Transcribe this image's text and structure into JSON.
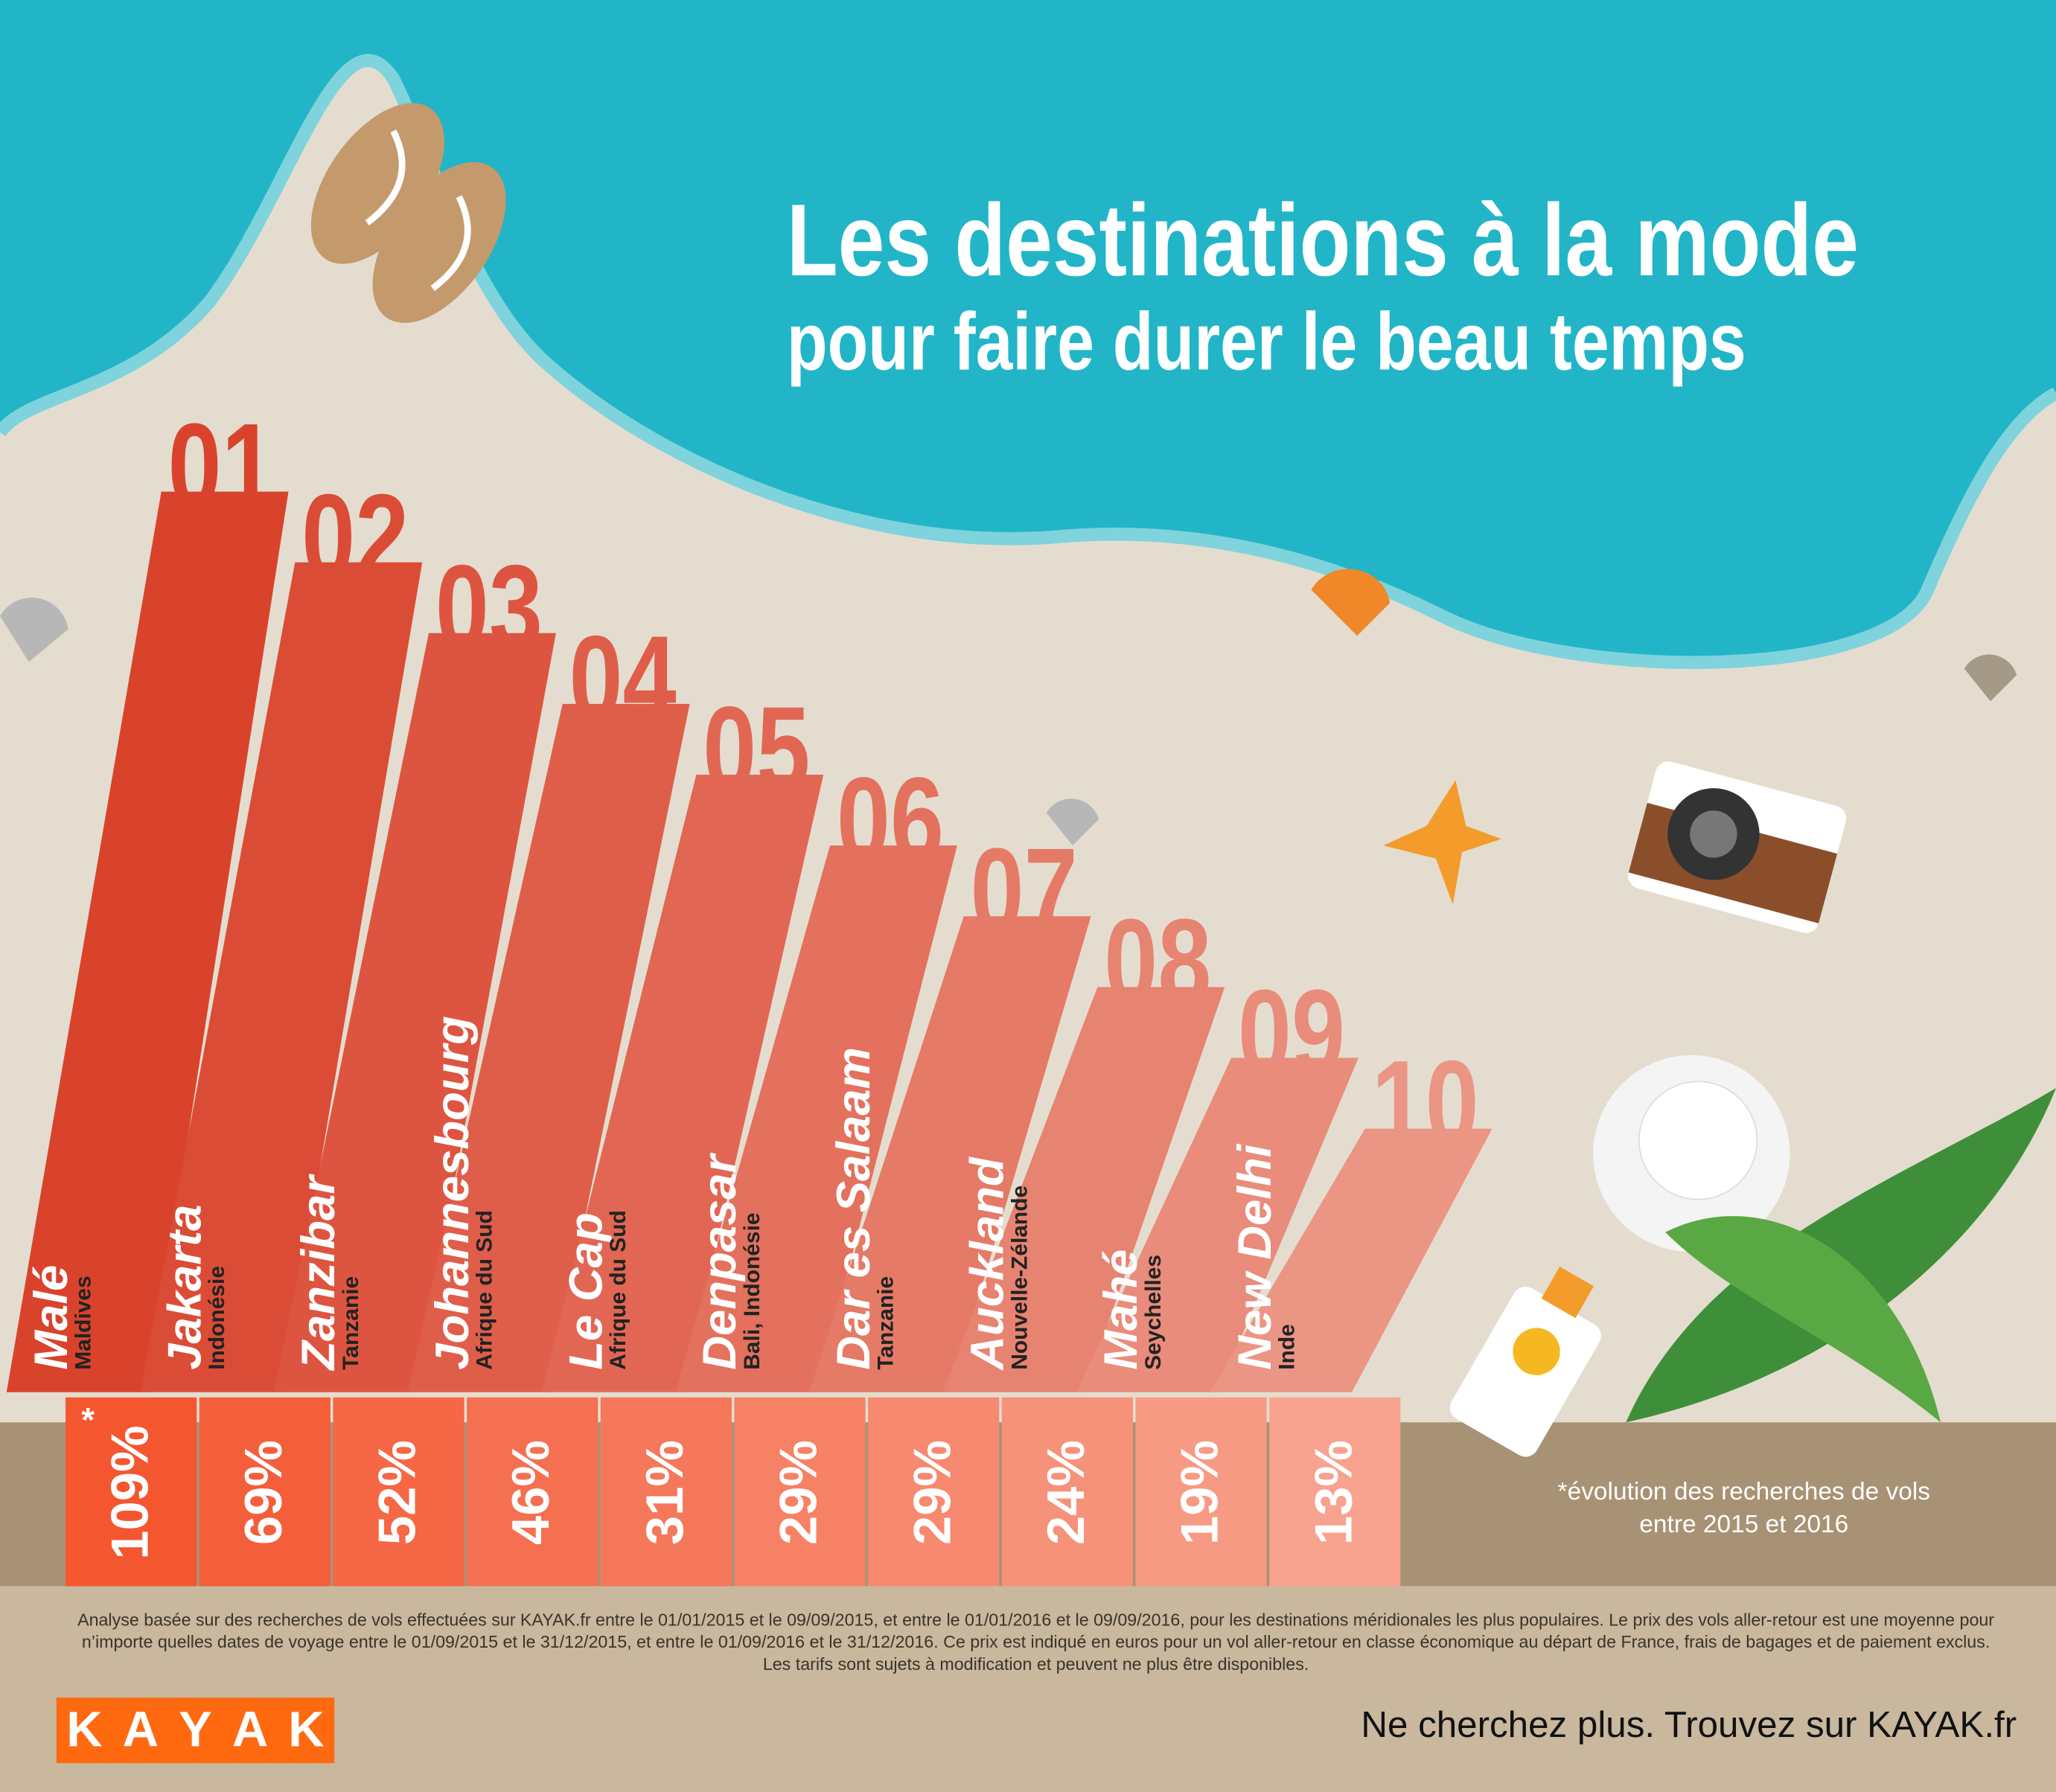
{
  "title": {
    "line1": "Les destinations à la mode",
    "line2": "pour faire durer le beau temps"
  },
  "colors": {
    "sea": "#21b5c7",
    "sand": "#e4ddcf",
    "bar_start": "#d9432c",
    "bar_end": "#eb9585",
    "pct_start": "#f45630",
    "pct_end": "#f7a38f",
    "brand": "#ff690f"
  },
  "chart_data": {
    "type": "bar",
    "title": "Les destinations à la mode pour faire durer le beau temps",
    "categories": [
      "Malé",
      "Jakarta",
      "Zanzibar",
      "Johannesbourg",
      "Le Cap",
      "Denpasar",
      "Dar es Salaam",
      "Auckland",
      "Mahé",
      "New Delhi"
    ],
    "ranks": [
      "01",
      "02",
      "03",
      "04",
      "05",
      "06",
      "07",
      "08",
      "09",
      "10"
    ],
    "countries": [
      "Maldives",
      "Indonésie",
      "Tanzanie",
      "Afrique du Sud",
      "Afrique du Sud",
      "Bali, Indonésie",
      "Tanzanie",
      "Nouvelle-Zélande",
      "Seychelles",
      "Inde"
    ],
    "values": [
      109,
      69,
      52,
      46,
      31,
      29,
      29,
      24,
      19,
      13
    ],
    "value_labels": [
      "109%",
      "69%",
      "52%",
      "46%",
      "31%",
      "29%",
      "29%",
      "24%",
      "19%",
      "13%"
    ],
    "asterisk": "*",
    "note": "*évolution des recherches de vols entre 2015 et 2016"
  },
  "footer": {
    "disclaimer": "Analyse basée sur des recherches de vols effectuées sur KAYAK.fr entre le 01/01/2015 et le 09/09/2015, et entre le 01/01/2016 et le 09/09/2016, pour les destinations méridionales les plus populaires. Le prix des vols aller-retour est une moyenne pour n’importe quelles dates de voyage entre le 01/09/2015 et le 31/12/2015, et entre le 01/09/2016 et le 31/12/2016. Ce prix est indiqué en euros pour un vol aller-retour en classe économique au départ de France, frais de bagages et de paiement exclus. Les tarifs sont sujets à modification et peuvent ne plus être disponibles.",
    "logo_letters": [
      "K",
      "A",
      "Y",
      "A",
      "K"
    ],
    "tagline": "Ne cherchez plus. Trouvez sur KAYAK.fr"
  },
  "decor_icons": [
    "flip-flops-icon",
    "seashell-icon",
    "starfish-icon",
    "camera-icon",
    "sun-hat-icon",
    "sunscreen-icon",
    "palm-leaf-icon"
  ]
}
